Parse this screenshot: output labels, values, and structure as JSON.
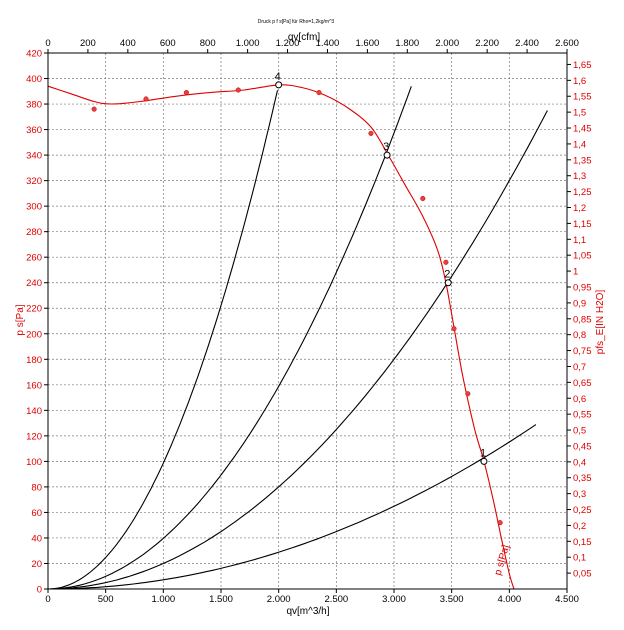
{
  "chart_data": {
    "type": "line",
    "title": "Druck p f s[Pa] für Rho=1,2kg/m^3",
    "xlabel": "qv[m^3/h]",
    "xlabel_top": "qv[cfm]",
    "ylabel": "p s[Pa]",
    "ylabel_right": "pfs_E[IN H2O]",
    "xlim": [
      0,
      4500
    ],
    "ylim": [
      0,
      420
    ],
    "x_ticks": [
      0,
      500,
      1000,
      1500,
      2000,
      2500,
      3000,
      3500,
      4000,
      4500
    ],
    "x_tick_labels": [
      "0",
      "500",
      "1.000",
      "1.500",
      "2.000",
      "2.500",
      "3.000",
      "3.500",
      "4.000",
      "4.500"
    ],
    "y_ticks": [
      0,
      20,
      40,
      60,
      80,
      100,
      120,
      140,
      160,
      180,
      200,
      220,
      240,
      260,
      280,
      300,
      320,
      340,
      360,
      380,
      400,
      420
    ],
    "top_xlim": [
      0,
      2600
    ],
    "top_ticks": [
      0,
      200,
      400,
      600,
      800,
      1000,
      1200,
      1400,
      1600,
      1800,
      2000,
      2200,
      2400,
      2600
    ],
    "top_tick_labels": [
      "0",
      "200",
      "400",
      "600",
      "800",
      "1.000",
      "1.200",
      "1.400",
      "1.600",
      "1.800",
      "2.000",
      "2.200",
      "2.400",
      "2.600"
    ],
    "right_ylim": [
      0,
      1.686
    ],
    "right_ticks": [
      0.05,
      0.1,
      0.15,
      0.2,
      0.25,
      0.3,
      0.35,
      0.4,
      0.45,
      0.5,
      0.55,
      0.6,
      0.65,
      0.7,
      0.75,
      0.8,
      0.85,
      0.9,
      0.95,
      1.0,
      1.05,
      1.1,
      1.15,
      1.2,
      1.25,
      1.3,
      1.35,
      1.4,
      1.45,
      1.5,
      1.55,
      1.6,
      1.65
    ],
    "right_tick_labels": [
      "0,05",
      "0,1",
      "0,15",
      "0,2",
      "0,25",
      "0,3",
      "0,35",
      "0,4",
      "0,45",
      "0,5",
      "0,55",
      "0,6",
      "0,65",
      "0,7",
      "0,75",
      "0,8",
      "0,85",
      "0,9",
      "0,95",
      "1",
      "1,05",
      "1,1",
      "1,15",
      "1,2",
      "1,25",
      "1,3",
      "1,35",
      "1,4",
      "1,45",
      "1,5",
      "1,55",
      "1,6",
      "1,65"
    ],
    "grid": true,
    "curve_label": "p s[Pa]",
    "fan_curve": [
      [
        0,
        394
      ],
      [
        200,
        388
      ],
      [
        400,
        382
      ],
      [
        550,
        380
      ],
      [
        800,
        382
      ],
      [
        1100,
        386
      ],
      [
        1400,
        389
      ],
      [
        1700,
        391
      ],
      [
        2000,
        395
      ],
      [
        2200,
        393
      ],
      [
        2400,
        387
      ],
      [
        2600,
        377
      ],
      [
        2800,
        362
      ],
      [
        2950,
        340
      ],
      [
        3100,
        316
      ],
      [
        3250,
        292
      ],
      [
        3380,
        265
      ],
      [
        3450,
        240
      ],
      [
        3520,
        205
      ],
      [
        3600,
        165
      ],
      [
        3700,
        125
      ],
      [
        3780,
        100
      ],
      [
        3860,
        70
      ],
      [
        3930,
        40
      ],
      [
        4000,
        12
      ],
      [
        4040,
        0
      ]
    ],
    "measured": [
      [
        400,
        376
      ],
      [
        850,
        384
      ],
      [
        1200,
        389
      ],
      [
        1650,
        391
      ],
      [
        2350,
        389
      ],
      [
        2800,
        357
      ],
      [
        3250,
        306
      ],
      [
        3450,
        256
      ],
      [
        3520,
        204
      ],
      [
        3640,
        153
      ],
      [
        3920,
        52
      ]
    ],
    "system_curves": [
      {
        "k": 9.87e-05,
        "x_max": 1990
      },
      {
        "k": 3.97e-05,
        "x_max": 3150
      },
      {
        "k": 2e-05,
        "x_max": 4330
      },
      {
        "k": 7.2e-06,
        "x_max": 4230
      }
    ],
    "operating_points": [
      {
        "label": "1",
        "x": 3780,
        "y": 100
      },
      {
        "label": "2",
        "x": 3470,
        "y": 240
      },
      {
        "label": "3",
        "x": 2940,
        "y": 340
      },
      {
        "label": "4",
        "x": 2000,
        "y": 395
      }
    ]
  }
}
